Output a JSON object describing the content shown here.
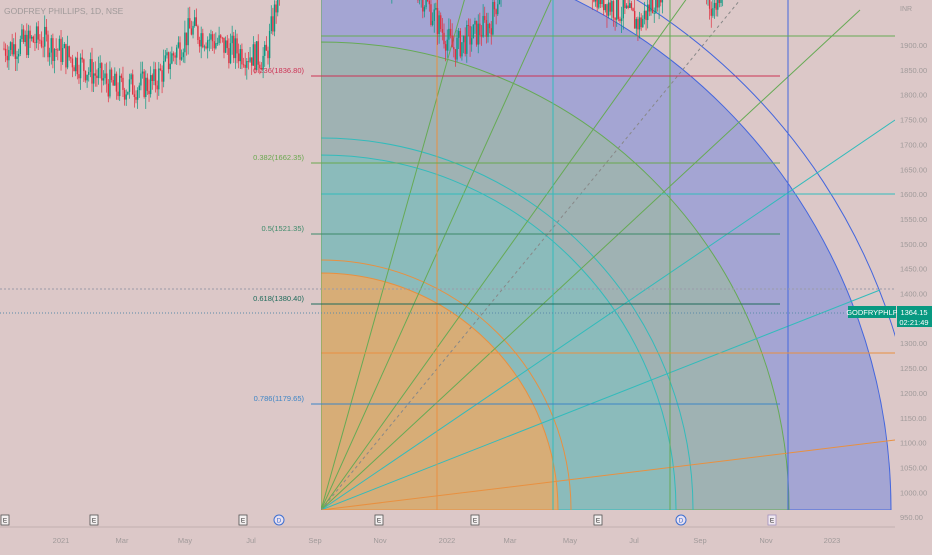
{
  "symbol_header": "GODFREY PHILLIPS, 1D, NSE",
  "currency": "INR",
  "price_tag": {
    "symbol": "GODFRYPHLP",
    "price": "1364.15",
    "countdown": "02:21:49",
    "bg_color": "#089981"
  },
  "x_axis_labels": [
    "2021",
    "Mar",
    "May",
    "Jul",
    "Sep",
    "Nov",
    "2022",
    "Mar",
    "May",
    "Jul",
    "Sep",
    "Nov",
    "2023"
  ],
  "y_axis_labels": [
    "1900.00",
    "1850.00",
    "1800.00",
    "1750.00",
    "1700.00",
    "1650.00",
    "1600.00",
    "1550.00",
    "1500.00",
    "1450.00",
    "1400.00",
    "1350.00",
    "1300.00",
    "1250.00",
    "1200.00",
    "1150.00",
    "1100.00",
    "1050.00",
    "1000.00",
    "950.00"
  ],
  "fib_levels": [
    {
      "label": "0.236(1836.80)",
      "color": "#cc3355"
    },
    {
      "label": "0.382(1662.35)",
      "color": "#6aa84f"
    },
    {
      "label": "0.5(1521.35)",
      "color": "#3c8a6a"
    },
    {
      "label": "0.618(1380.40)",
      "color": "#1f6b5b"
    },
    {
      "label": "0.786(1179.65)",
      "color": "#3d85c6"
    }
  ],
  "event_markers": [
    "E",
    "E",
    "E",
    "D",
    "E",
    "E",
    "E",
    "D",
    "E"
  ],
  "chart_data": {
    "type": "candlestick",
    "title": "GODFREY PHILLIPS, 1D, NSE",
    "ylim": [
      940,
      1930
    ],
    "last_price": 1364.15,
    "price_path": [
      {
        "date": "2020-12",
        "close": 1000
      },
      {
        "date": "2021-01",
        "close": 1020
      },
      {
        "date": "2021-02",
        "close": 970
      },
      {
        "date": "2021-04",
        "close": 920
      },
      {
        "date": "2021-06",
        "close": 930
      },
      {
        "date": "2021-07",
        "close": 1040
      },
      {
        "date": "2021-08",
        "close": 1000
      },
      {
        "date": "2021-09",
        "close": 980
      },
      {
        "date": "2021-10",
        "close": 1370
      },
      {
        "date": "2021-11",
        "close": 1260
      },
      {
        "date": "2021-12",
        "close": 1150
      },
      {
        "date": "2022-01",
        "close": 1130
      },
      {
        "date": "2022-02",
        "close": 1000
      },
      {
        "date": "2022-03",
        "close": 1050
      },
      {
        "date": "2022-04",
        "close": 1320
      },
      {
        "date": "2022-05",
        "close": 1180
      },
      {
        "date": "2022-06",
        "close": 1100
      },
      {
        "date": "2022-07",
        "close": 1050
      },
      {
        "date": "2022-08",
        "close": 1180
      },
      {
        "date": "2022-09",
        "close": 1080
      },
      {
        "date": "2022-10",
        "close": 1364.15
      }
    ]
  },
  "colors": {
    "background": "#dcc8c8",
    "candle_up": "#089981",
    "candle_down": "#e03040",
    "orange_fan": "#f0a860",
    "teal_fan": "#66cccc",
    "green_fan": "#99cc77",
    "blue_fan": "#7788dd"
  }
}
